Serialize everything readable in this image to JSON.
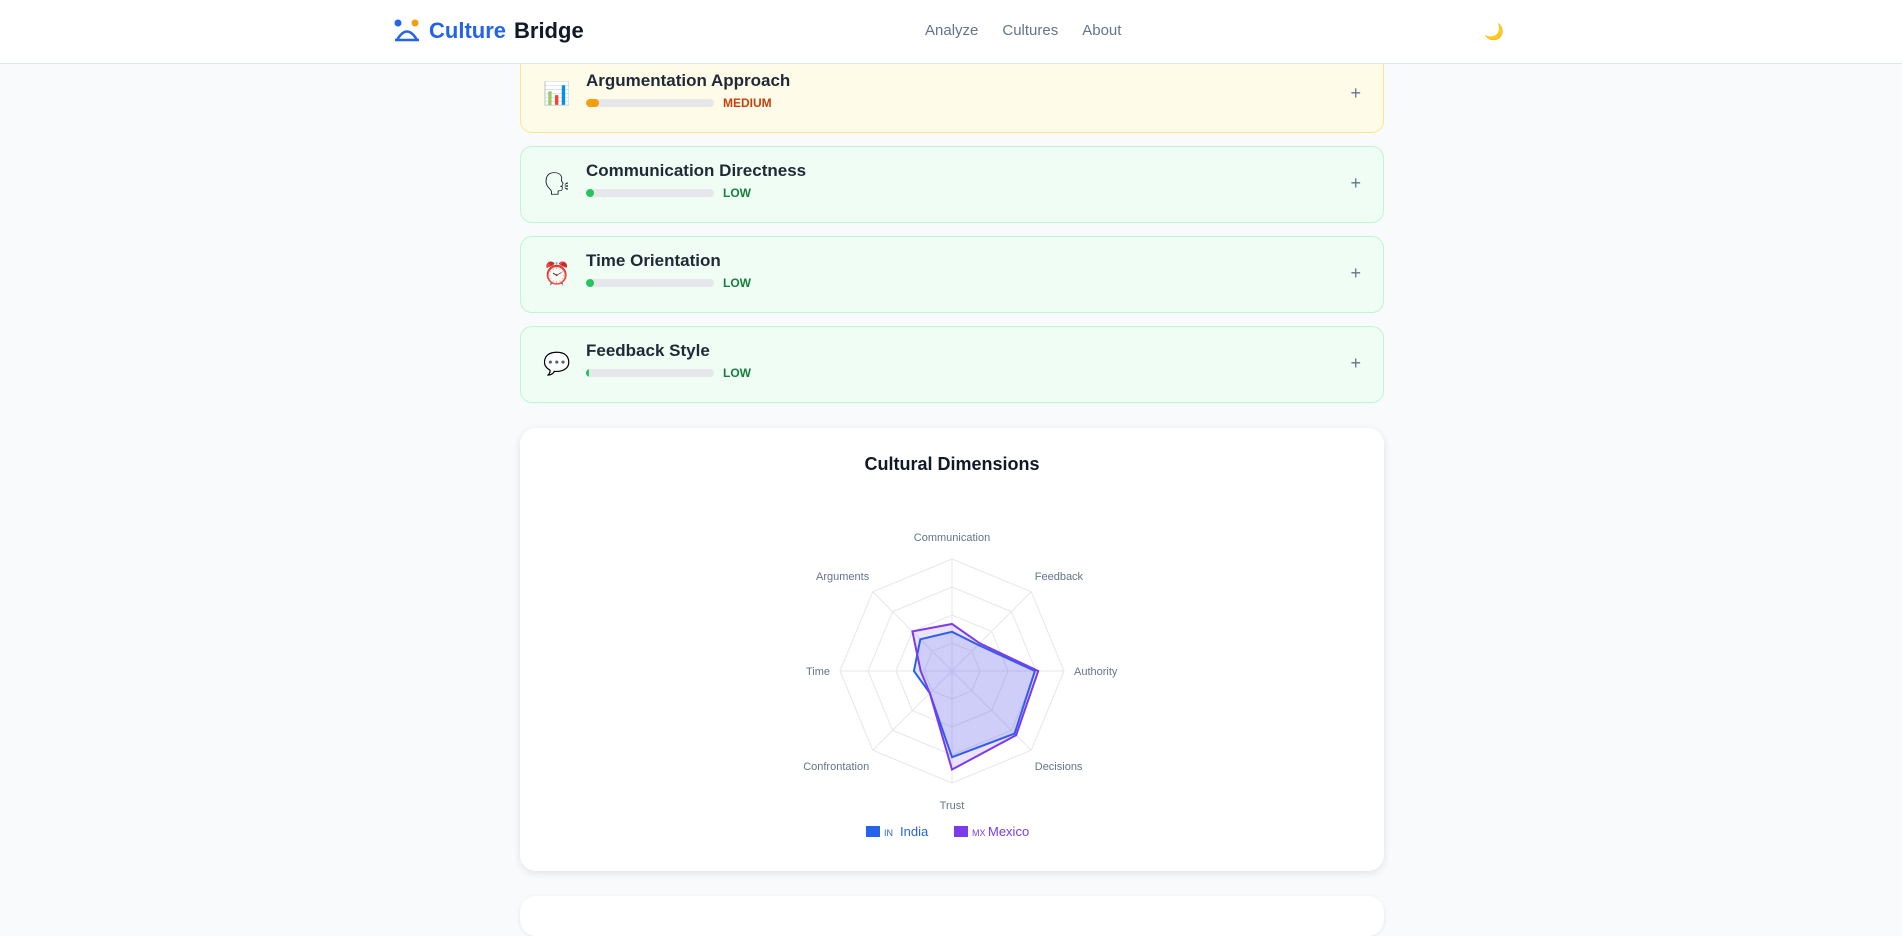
{
  "header": {
    "logo_part1": "Culture",
    "logo_part2": "Bridge",
    "nav": [
      "Analyze",
      "Cultures",
      "About"
    ],
    "theme_icon": "🌙"
  },
  "cards": [
    {
      "title": "Argumentation Approach",
      "icon": "📊",
      "level": "MEDIUM",
      "fill_pct": 10,
      "color": "#f59e0b",
      "text_color": "#c2410c",
      "variant": "med"
    },
    {
      "title": "Communication Directness",
      "icon": "🗣",
      "level": "LOW",
      "fill_pct": 6,
      "color": "#22c55e",
      "text_color": "#15803d",
      "variant": "low"
    },
    {
      "title": "Time Orientation",
      "icon": "⏰",
      "level": "LOW",
      "fill_pct": 6,
      "color": "#22c55e",
      "text_color": "#15803d",
      "variant": "low"
    },
    {
      "title": "Feedback Style",
      "icon": "💬",
      "level": "LOW",
      "fill_pct": 2,
      "color": "#22c55e",
      "text_color": "#15803d",
      "variant": "low"
    }
  ],
  "expand_icon": "+",
  "chart_data": {
    "type": "radar",
    "title": "Cultural Dimensions",
    "axes": [
      "Communication",
      "Feedback",
      "Authority",
      "Decisions",
      "Trust",
      "Confrontation",
      "Time",
      "Arguments"
    ],
    "range": [
      0,
      100
    ],
    "grid_levels": 4,
    "series": [
      {
        "name": "India",
        "flag": "IN",
        "color": "#2563eb",
        "values": [
          35,
          33,
          74,
          79,
          77,
          28,
          34,
          40
        ]
      },
      {
        "name": "Mexico",
        "flag": "MX",
        "color": "#7c3aed",
        "values": [
          42,
          35,
          77,
          81,
          88,
          28,
          28,
          50
        ]
      }
    ],
    "legend_position": "bottom"
  }
}
